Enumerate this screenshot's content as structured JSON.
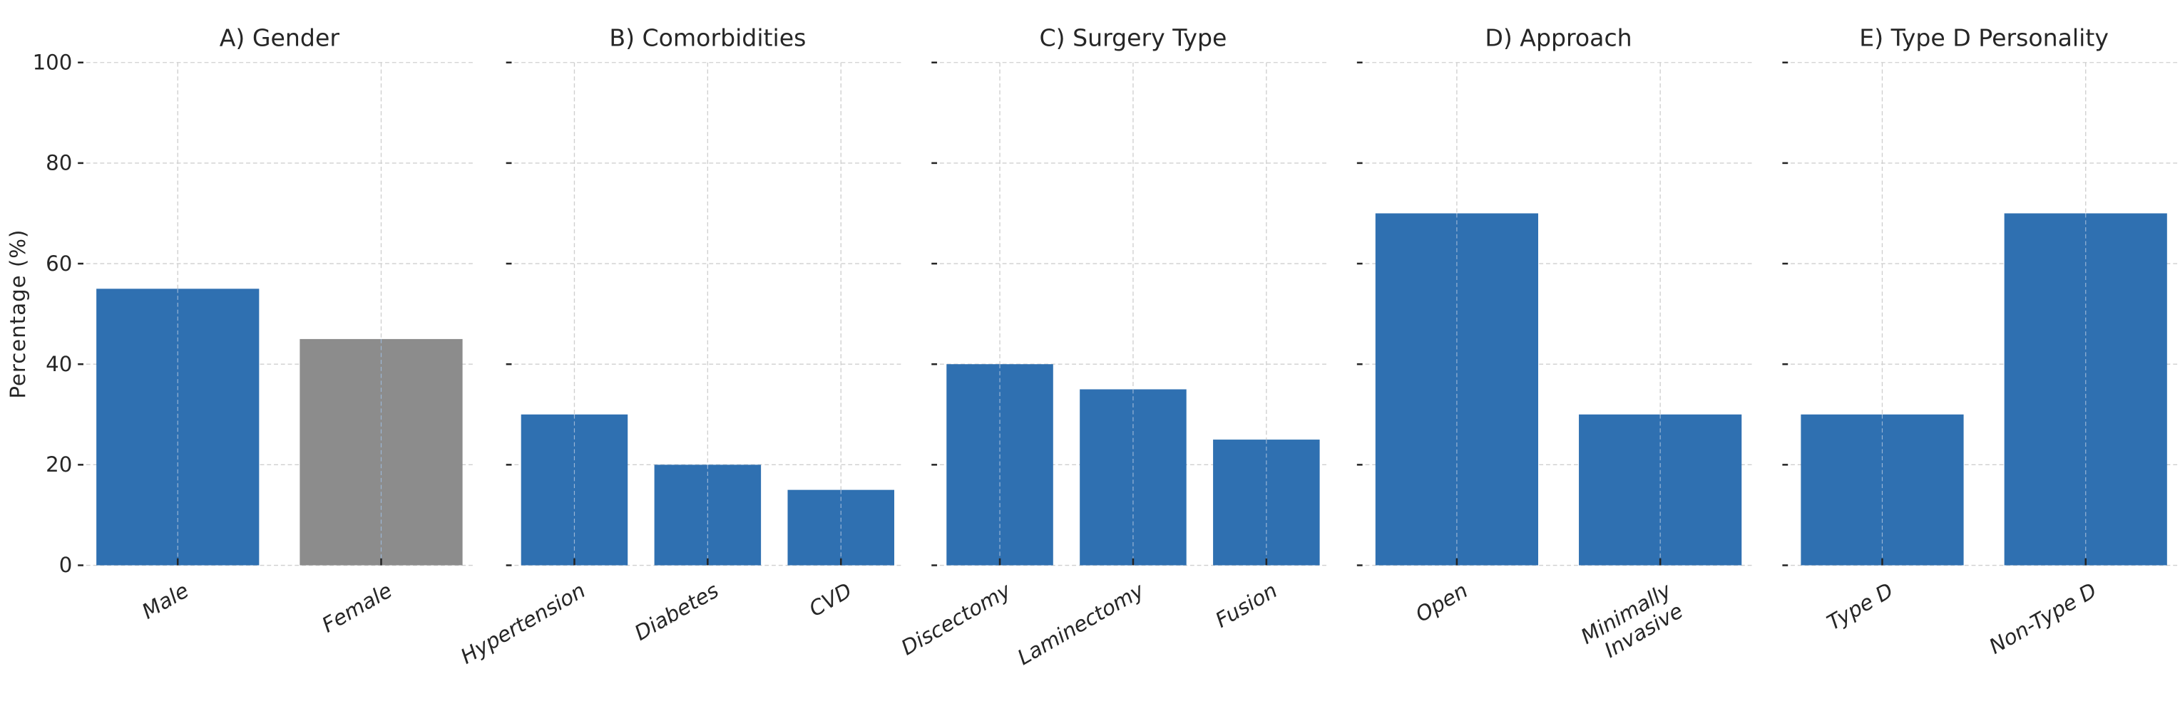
{
  "chart_data": [
    {
      "type": "bar",
      "title": "A) Gender",
      "categories": [
        "Male",
        "Female"
      ],
      "values": [
        55,
        45
      ],
      "colors": [
        "#2f70b1",
        "#8c8c8c"
      ],
      "ylabel": "Percentage (%)",
      "ylim": [
        0,
        100
      ],
      "yticks": [
        0,
        20,
        40,
        60,
        80,
        100
      ],
      "grid": true
    },
    {
      "type": "bar",
      "title": "B) Comorbidities",
      "categories": [
        "Hypertension",
        "Diabetes",
        "CVD"
      ],
      "values": [
        30,
        20,
        15
      ],
      "colors": [
        "#2f70b1",
        "#2f70b1",
        "#2f70b1"
      ],
      "ylim": [
        0,
        100
      ],
      "grid": true
    },
    {
      "type": "bar",
      "title": "C) Surgery Type",
      "categories": [
        "Discectomy",
        "Laminectomy",
        "Fusion"
      ],
      "values": [
        40,
        35,
        25
      ],
      "colors": [
        "#2f70b1",
        "#2f70b1",
        "#2f70b1"
      ],
      "ylim": [
        0,
        100
      ],
      "grid": true
    },
    {
      "type": "bar",
      "title": "D) Approach",
      "categories": [
        "Open",
        "Minimally\nInvasive"
      ],
      "values": [
        70,
        30
      ],
      "colors": [
        "#2f70b1",
        "#2f70b1"
      ],
      "ylim": [
        0,
        100
      ],
      "grid": true
    },
    {
      "type": "bar",
      "title": "E) Type D Personality",
      "categories": [
        "Type D",
        "Non-Type D"
      ],
      "values": [
        30,
        70
      ],
      "colors": [
        "#2f70b1",
        "#2f70b1"
      ],
      "ylim": [
        0,
        100
      ],
      "grid": true
    }
  ]
}
